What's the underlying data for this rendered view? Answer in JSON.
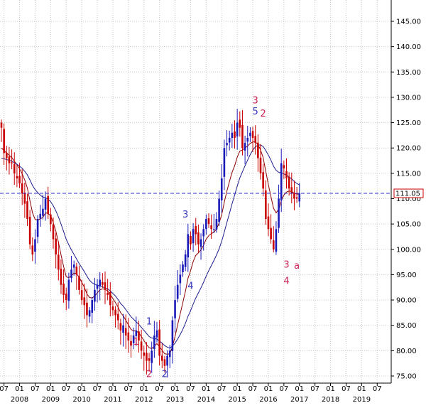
{
  "chart_data": {
    "type": "candlestick",
    "title": "",
    "xlabel": "",
    "ylabel": "",
    "frequency": "monthly",
    "ylim": [
      74.5,
      151
    ],
    "y_ticks": [
      75,
      80,
      85,
      90,
      95,
      100,
      105,
      110,
      115,
      120,
      125,
      130,
      135,
      140,
      145
    ],
    "y_tick_labels": [
      "75.00",
      "80.00",
      "85.00",
      "90.00",
      "95.00",
      "100.00",
      "105.00",
      "110.00",
      "115.00",
      "120.00",
      "125.00",
      "130.00",
      "135.00",
      "140.00",
      "145.00"
    ],
    "x_month_labels": [
      "07",
      "01",
      "07",
      "01",
      "07",
      "01",
      "07",
      "01",
      "07",
      "01",
      "07",
      "01",
      "07",
      "01",
      "07",
      "01",
      "07",
      "01",
      "07",
      "01",
      "07",
      "01",
      "07",
      "01",
      "07"
    ],
    "x_year_labels": [
      "2008",
      "2009",
      "2010",
      "2011",
      "2012",
      "2013",
      "2014",
      "2015",
      "2016",
      "2017",
      "2018",
      "2019"
    ],
    "grid": true,
    "current_value": 111.05,
    "current_value_label": "111.05",
    "closes": [
      124,
      119,
      118,
      117,
      117,
      115,
      114,
      113,
      111,
      109,
      106,
      101,
      99,
      102,
      106,
      107,
      108,
      110,
      107,
      105,
      102,
      99,
      96,
      93,
      91,
      90,
      94,
      96,
      97,
      95,
      92,
      90,
      89,
      87,
      88,
      90,
      92,
      93,
      94,
      93,
      92,
      91,
      89,
      88,
      87,
      86,
      84,
      85,
      83,
      82,
      81,
      83,
      84,
      82,
      80,
      79,
      78,
      78,
      80,
      83,
      84,
      79,
      78,
      77,
      79,
      80,
      86,
      90,
      93,
      95,
      97,
      99,
      103,
      101,
      104,
      103,
      101,
      102,
      104,
      106,
      105,
      104,
      104,
      106,
      110,
      114,
      120,
      121,
      122,
      123,
      122,
      125,
      124,
      120,
      121,
      122,
      123,
      122,
      121,
      118,
      115,
      112,
      106,
      104,
      102,
      100,
      104,
      110,
      117,
      116,
      114,
      112,
      111,
      110,
      110,
      111.05
    ],
    "series": [
      {
        "name": "",
        "color": "#8b0000",
        "values": [
          120,
          119.5,
          119,
          118.6,
          118.1,
          117.4,
          116.7,
          115.9,
          114.9,
          113.7,
          112.1,
          109.6,
          107.2,
          105.9,
          105.8,
          106,
          106.3,
          107.2,
          107.1,
          106.6,
          105.3,
          103.6,
          101.4,
          98.9,
          96.6,
          94.6,
          94.4,
          94.8,
          95.3,
          95.2,
          94.5,
          93.5,
          92.5,
          91.2,
          90.5,
          90.4,
          90.8,
          91.4,
          92,
          92.2,
          92.1,
          91.8,
          91.1,
          90.3,
          89.5,
          88.6,
          87.5,
          86.9,
          86,
          85.1,
          84.2,
          83.9,
          83.9,
          83.5,
          82.8,
          82,
          81.2,
          80.6,
          80.4,
          80.9,
          81.4,
          80.8,
          80.1,
          79.4,
          79.3,
          79.4,
          80.8,
          82.8,
          85.1,
          87.3,
          89.5,
          91.7,
          94.3,
          95.8,
          97.6,
          98.8,
          99.3,
          99.9,
          100.8,
          102,
          102.7,
          103.1,
          103.4,
          104,
          105.2,
          106.8,
          109.3,
          111.5,
          113.4,
          115.2,
          116.5,
          118.2,
          119.4,
          119.6,
          120,
          120.4,
          120.9,
          121.2,
          121.2,
          120.7,
          119.6,
          118.1,
          115.4,
          112.8,
          110.4,
          108.1,
          107.2,
          107.9,
          109.6,
          110.7,
          111.3,
          111.5,
          111.4,
          111.1,
          110.9,
          110.9
        ]
      },
      {
        "name": "",
        "color": "#1c1c8c",
        "values": [
          118,
          117.9,
          117.7,
          117.6,
          117.4,
          117.1,
          116.8,
          116.4,
          116,
          115.4,
          114.7,
          113.7,
          112.6,
          111.8,
          111.2,
          110.7,
          110.3,
          110.2,
          109.9,
          109.4,
          108.6,
          107.6,
          106.4,
          105,
          103.5,
          102,
          100.9,
          99.9,
          99,
          98.1,
          97.2,
          96.4,
          95.6,
          94.7,
          93.9,
          93.4,
          93.1,
          92.9,
          92.8,
          92.6,
          92.4,
          92.2,
          91.8,
          91.3,
          90.8,
          90.1,
          89.3,
          88.8,
          88.1,
          87.4,
          86.7,
          86.2,
          85.7,
          85.2,
          84.6,
          84,
          83.4,
          82.8,
          82.5,
          82.4,
          82.3,
          81.9,
          81.5,
          81,
          80.7,
          80.5,
          80.9,
          81.5,
          82.3,
          83.2,
          84.2,
          85.4,
          86.8,
          87.9,
          89.2,
          90.4,
          91.4,
          92.4,
          93.5,
          94.7,
          95.8,
          96.8,
          97.8,
          98.9,
          100.1,
          101.6,
          103.4,
          105.3,
          107.1,
          109,
          110.7,
          112.5,
          114.1,
          115.3,
          116.5,
          117.6,
          118.7,
          119.6,
          120.2,
          120.6,
          120.6,
          120.3,
          119.5,
          118.6,
          117.6,
          116.4,
          115.6,
          115.2,
          115.1,
          114.9,
          114.6,
          114.3,
          113.9,
          113.4,
          113,
          112.7
        ]
      }
    ],
    "wave_labels": [
      {
        "text": "1",
        "color": "#cc2255",
        "x_index": 52,
        "y": 81.2
      },
      {
        "text": "2",
        "color": "#cc2255",
        "x_index": 57,
        "y": 74.8
      },
      {
        "text": "1",
        "color": "#3333bb",
        "x_index": 57,
        "y": 85.2
      },
      {
        "text": "2",
        "color": "#3333bb",
        "x_index": 63,
        "y": 74.8
      },
      {
        "text": "3",
        "color": "#3333bb",
        "x_index": 71,
        "y": 106.3
      },
      {
        "text": "4",
        "color": "#3333bb",
        "x_index": 73,
        "y": 92.2
      },
      {
        "text": "3",
        "color": "#cc2255",
        "x_index": 98,
        "y": 128.8
      },
      {
        "text": "5",
        "color": "#3333bb",
        "x_index": 98,
        "y": 126.6
      },
      {
        "text": "2",
        "color": "#cc2255",
        "x_index": 101,
        "y": 126.2
      },
      {
        "text": "3",
        "color": "#cc2255",
        "x_index": 110,
        "y": 96.4
      },
      {
        "text": "a",
        "color": "#cc2255",
        "x_index": 114,
        "y": 96.2
      },
      {
        "text": "4",
        "color": "#cc2255",
        "x_index": 110,
        "y": 93.2
      }
    ]
  }
}
